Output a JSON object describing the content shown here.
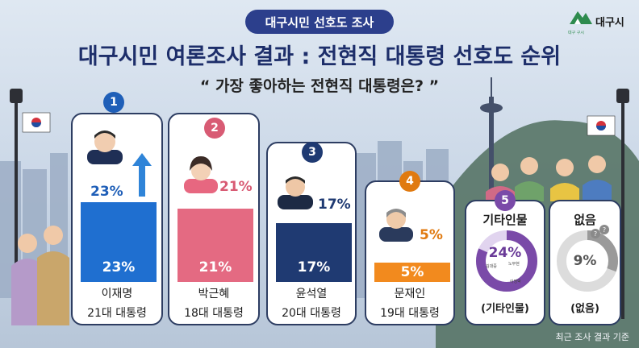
{
  "header": {
    "badge": "대구시민 선호도 조사",
    "title": "대구시민 여론조사 결과 : 전현직 대통령 선호도 순위",
    "subtitle": "“ 가장 좋아하는 전현직 대통령은? ”",
    "logo_text": "대구시",
    "logo_sub": "대구 구시"
  },
  "footer": {
    "note": "최근 조사 결과 기준"
  },
  "colors": {
    "lee": "#1f6fd0",
    "park": "#e46a82",
    "yoon": "#1f3a72",
    "moon": "#f28a1e",
    "other": "#7a4aa8",
    "none": "#9a9a9a"
  },
  "chart_data": {
    "type": "bar",
    "title": "대구시민 여론조사 결과 : 전현직 대통령 선호도 순위",
    "subtitle": "“ 가장 좋아하는 전현직 대통령은? ”",
    "categories": [
      "이재명",
      "박근혜",
      "윤석열",
      "문재인",
      "기타인물",
      "없음"
    ],
    "values": [
      23,
      21,
      17,
      5,
      24,
      9
    ],
    "ranks": [
      "1",
      "2",
      "3",
      "4",
      "5"
    ],
    "cards": [
      {
        "rank": "1",
        "name": "이재명",
        "title": "21대 대통령",
        "value": 23,
        "label": "23%"
      },
      {
        "rank": "2",
        "name": "박근혜",
        "title": "18대 대통령",
        "value": 21,
        "label": "21%"
      },
      {
        "rank": "3",
        "name": "윤석열",
        "title": "20대 대통령",
        "value": 17,
        "label": "17%"
      },
      {
        "rank": "4",
        "name": "문재인",
        "title": "19대 대통령",
        "value": 5,
        "label": "5%"
      }
    ],
    "other": {
      "rank": "5",
      "name": "기타인물",
      "caption": "(기타인물)",
      "value": 24,
      "label": "24%",
      "tags": [
        "김대중",
        "노무현",
        "이명박"
      ]
    },
    "none": {
      "name": "없음",
      "caption": "(없음)",
      "value": 9,
      "label": "9%"
    },
    "ylim": [
      0,
      25
    ]
  }
}
